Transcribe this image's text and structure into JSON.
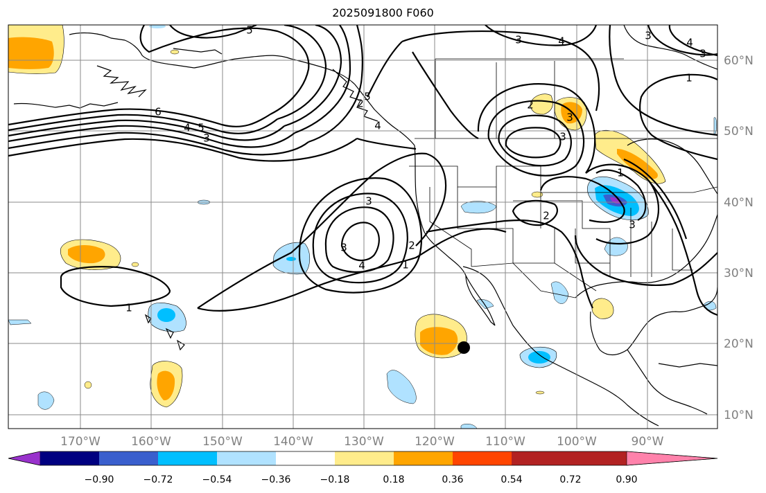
{
  "title": "2025091800 F060",
  "lat_labels": [
    "60°N",
    "50°N",
    "40°N",
    "30°N",
    "20°N",
    "10°N"
  ],
  "lon_labels": [
    "170°W",
    "160°W",
    "150°W",
    "140°W",
    "130°W",
    "120°W",
    "110°W",
    "100°W",
    "90°W"
  ],
  "colorbar": {
    "ticks": [
      "−0.90",
      "−0.72",
      "−0.54",
      "−0.36",
      "−0.18",
      "0.18",
      "0.36",
      "0.54",
      "0.72",
      "0.90"
    ],
    "colors": [
      "#9932cc",
      "#000080",
      "#3a5fcd",
      "#00bfff",
      "#b0e2ff",
      "#ffffff",
      "#ffec8b",
      "#ffa500",
      "#ff4500",
      "#b22222",
      "#ff82ab"
    ]
  },
  "contour_labels": [
    "5",
    "6",
    "4",
    "5",
    "3",
    "3",
    "4",
    "3",
    "4",
    "3",
    "2",
    "1",
    "2",
    "3",
    "3",
    "3",
    "1",
    "3",
    "2",
    "1",
    "4",
    "5",
    "3",
    "2",
    "4",
    "1"
  ],
  "marker": "point-marker"
}
